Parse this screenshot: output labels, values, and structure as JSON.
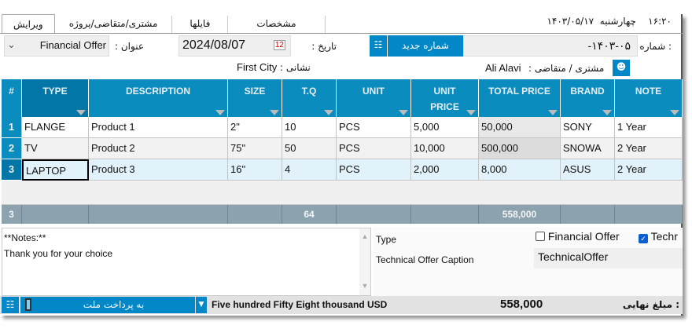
{
  "header": {
    "time": "۱۶:۲۰",
    "weekday": "چهارشنبه",
    "date": "۱۴۰۳/۰۵/۱۷"
  },
  "tabs": [
    {
      "label": "ویرایش"
    },
    {
      "label": "مشتری/متقاضی/پروژه"
    },
    {
      "label": "فایلها"
    },
    {
      "label": "مشخصات"
    }
  ],
  "form": {
    "number_label": "شماره :",
    "number_value": "-۱۴۰۳-۰۵",
    "new_number_button": "شماره جدید",
    "date_label": "تاریخ :",
    "date_value": "2024/08/07",
    "title_label": "عنوان :",
    "title_value": "Financial Offer",
    "customer_label": "مشتری / متقاضی :",
    "customer_value": "Ali Alavi",
    "address_label": "نشانی :",
    "address_value": "First City"
  },
  "grid": {
    "columns": [
      "#",
      "TYPE",
      "DESCRIPTION",
      "SIZE",
      "T.Q",
      "UNIT",
      "UNIT PRICE",
      "TOTAL PRICE",
      "BRAND",
      "NOTE"
    ],
    "rows": [
      [
        "1",
        "FLANGE",
        "Product 1",
        "2\"",
        "10",
        "PCS",
        "5,000",
        "50,000",
        "SONY",
        "1 Year"
      ],
      [
        "2",
        "TV",
        "Product 2",
        "75\"",
        "50",
        "PCS",
        "10,000",
        "500,000",
        "SNOWA",
        "2 Year"
      ],
      [
        "3",
        "LAPTOP",
        "Product 3",
        "16\"",
        "4",
        "PCS",
        "2,000",
        "8,000",
        "ASUS",
        "2 Year"
      ]
    ],
    "footer": {
      "count": "3",
      "tq_sum": "64",
      "total_sum": "558,000"
    }
  },
  "notes": {
    "line1": "**Notes:**",
    "line2": "Thank you for your choice"
  },
  "props": {
    "type_label": "Type",
    "financial_offer": "Financial Offer",
    "financial_checked": false,
    "technical_offer": "Techr",
    "technical_checked": true,
    "caption_label": "Technical Offer Caption",
    "caption_value": "TechnicalOffer"
  },
  "bottom": {
    "payment": "به پرداخت ملت",
    "amount_words": "Five hundred Fifty Eight thousand  USD",
    "amount": "558,000",
    "final_label": ": مبلغ نهایی"
  },
  "colors": {
    "accent": "#0288c7",
    "header": "#0b8cbf",
    "footer": "#8ca3af"
  }
}
